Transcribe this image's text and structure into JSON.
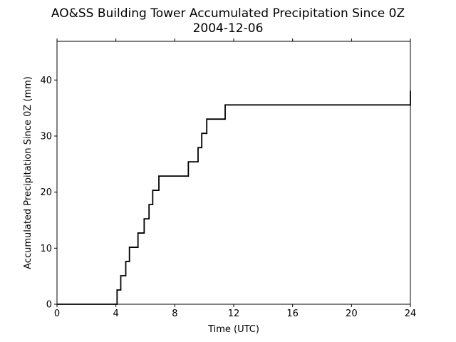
{
  "chart_data": {
    "type": "line",
    "title": "AO&SS Building Tower Accumulated Precipitation Since 0Z",
    "subtitle": "2004-12-06",
    "xlabel": "Time (UTC)",
    "ylabel": "Accumulated Precipitation Since 0Z (mm)",
    "xlim": [
      0,
      24
    ],
    "ylim": [
      0,
      46.9
    ],
    "x_ticks": [
      0,
      4,
      8,
      12,
      16,
      20,
      24
    ],
    "y_ticks": [
      0,
      10,
      20,
      30,
      40
    ],
    "grid": false,
    "line_color": "#000000",
    "step": true,
    "series": [
      {
        "x": [
          0,
          4.08,
          4.33,
          4.67,
          4.92,
          5.5,
          5.92,
          6.25,
          6.5,
          6.92,
          8.92,
          9.58,
          9.83,
          10.17,
          11.42,
          24
        ],
        "y": [
          0,
          2.54,
          5.08,
          7.62,
          10.16,
          12.7,
          15.24,
          17.78,
          20.32,
          22.86,
          25.4,
          27.94,
          30.48,
          33.02,
          35.56,
          38.1
        ],
        "values": [
          0,
          2.54,
          5.08,
          7.62,
          10.16,
          12.7,
          15.24,
          17.78,
          20.32,
          22.86,
          25.4,
          27.94,
          30.48,
          33.02,
          35.56,
          38.1
        ]
      }
    ]
  }
}
